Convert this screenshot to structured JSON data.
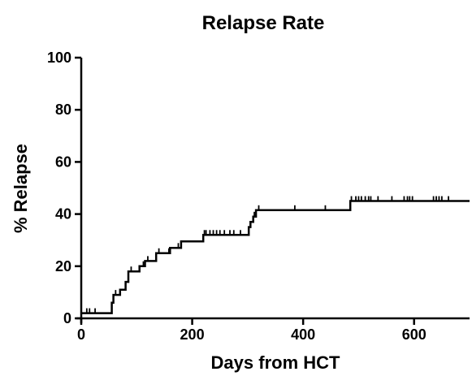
{
  "chart_data": {
    "type": "line",
    "title": "Relapse Rate",
    "xlabel": "Days from HCT",
    "ylabel": "% Relapse",
    "xlim": [
      0,
      700
    ],
    "ylim": [
      0,
      100
    ],
    "x_ticks": [
      0,
      200,
      400,
      600
    ],
    "y_ticks": [
      0,
      20,
      40,
      60,
      80,
      100
    ],
    "grid": false,
    "legend": "none",
    "line_color": "#000000",
    "series": [
      {
        "steps": [
          [
            0,
            2
          ],
          [
            55,
            2
          ],
          [
            55,
            6
          ],
          [
            58,
            6
          ],
          [
            58,
            9
          ],
          [
            70,
            9
          ],
          [
            70,
            11
          ],
          [
            80,
            11
          ],
          [
            80,
            14
          ],
          [
            85,
            14
          ],
          [
            85,
            18
          ],
          [
            105,
            18
          ],
          [
            105,
            20
          ],
          [
            115,
            20
          ],
          [
            115,
            22
          ],
          [
            135,
            22
          ],
          [
            135,
            25
          ],
          [
            160,
            25
          ],
          [
            160,
            27
          ],
          [
            180,
            27
          ],
          [
            180,
            29.5
          ],
          [
            220,
            29.5
          ],
          [
            220,
            32
          ],
          [
            302,
            32
          ],
          [
            302,
            35
          ],
          [
            305,
            35
          ],
          [
            305,
            37
          ],
          [
            310,
            37
          ],
          [
            310,
            39
          ],
          [
            315,
            39
          ],
          [
            315,
            41.5
          ],
          [
            485,
            41.5
          ],
          [
            485,
            45
          ],
          [
            700,
            45
          ]
        ],
        "censors": [
          [
            10,
            2
          ],
          [
            15,
            2
          ],
          [
            25,
            2
          ],
          [
            62,
            9
          ],
          [
            90,
            18
          ],
          [
            112,
            20
          ],
          [
            120,
            22
          ],
          [
            140,
            25
          ],
          [
            158,
            25
          ],
          [
            175,
            27
          ],
          [
            222,
            32
          ],
          [
            225,
            32
          ],
          [
            232,
            32
          ],
          [
            238,
            32
          ],
          [
            244,
            32
          ],
          [
            250,
            32
          ],
          [
            258,
            32
          ],
          [
            268,
            32
          ],
          [
            275,
            32
          ],
          [
            287,
            32
          ],
          [
            312,
            39
          ],
          [
            320,
            41.5
          ],
          [
            385,
            41.5
          ],
          [
            440,
            41.5
          ],
          [
            487,
            45
          ],
          [
            495,
            45
          ],
          [
            500,
            45
          ],
          [
            505,
            45
          ],
          [
            512,
            45
          ],
          [
            518,
            45
          ],
          [
            522,
            45
          ],
          [
            535,
            45
          ],
          [
            560,
            45
          ],
          [
            582,
            45
          ],
          [
            588,
            45
          ],
          [
            592,
            45
          ],
          [
            597,
            45
          ],
          [
            635,
            45
          ],
          [
            640,
            45
          ],
          [
            645,
            45
          ],
          [
            650,
            45
          ],
          [
            662,
            45
          ]
        ]
      }
    ]
  }
}
